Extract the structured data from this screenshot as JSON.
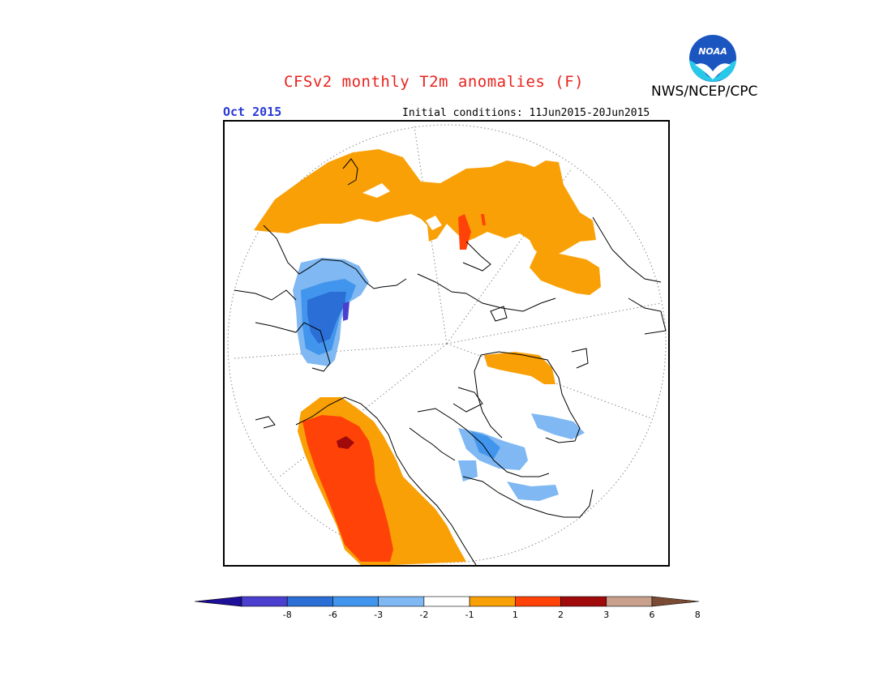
{
  "header": {
    "title": "CFSv2 monthly T2m anomalies (F)",
    "agency": "NWS/NCEP/CPC",
    "logo_text": "NOAA"
  },
  "map": {
    "month": "Oct 2015",
    "initial_conditions": "Initial conditions: 11Jun2015-20Jun2015",
    "projection": "north-polar-stereographic"
  },
  "colorbar": {
    "labels": [
      "-8",
      "-6",
      "-3",
      "-2",
      "-1",
      "1",
      "2",
      "3",
      "6",
      "8"
    ],
    "colors": [
      "#1e0f99",
      "#4b3fcf",
      "#2a6ed6",
      "#4295ec",
      "#7fb8f2",
      "#ffffff",
      "#f9a007",
      "#ff4308",
      "#a00a0a",
      "#c8a08c",
      "#7a4a32"
    ]
  },
  "colors": {
    "title": "#e8231e",
    "month": "#2a3ad6",
    "warm1": "#f9a007",
    "warm2": "#ff4308",
    "warm3": "#a00a0a",
    "cool1": "#7fb8f2",
    "cool2": "#4295ec",
    "cool3": "#2a6ed6",
    "cool4": "#4b3fcf"
  }
}
